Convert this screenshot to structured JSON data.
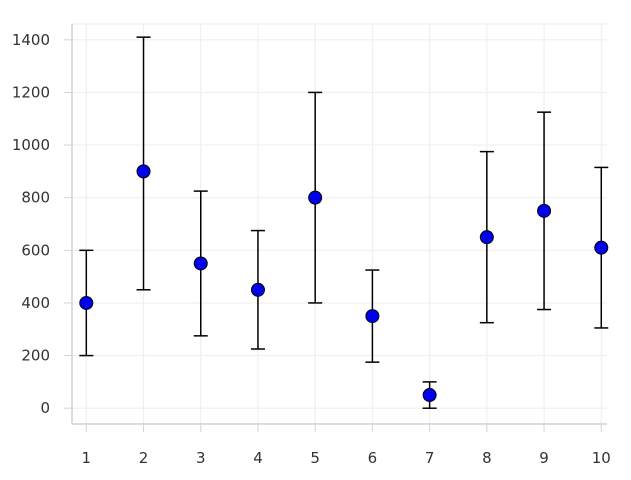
{
  "chart_data": {
    "type": "scatter",
    "x": [
      1,
      2,
      3,
      4,
      5,
      6,
      7,
      8,
      9,
      10
    ],
    "series": [
      {
        "values": [
          400,
          900,
          550,
          450,
          800,
          350,
          50,
          650,
          750,
          610
        ],
        "error_low": [
          200,
          450,
          275,
          225,
          400,
          175,
          0,
          325,
          375,
          305
        ],
        "error_high": [
          600,
          1410,
          825,
          675,
          1200,
          525,
          100,
          975,
          1125,
          915
        ],
        "color": "#0000ee"
      }
    ],
    "title": "",
    "xlabel": "",
    "ylabel": "",
    "x_ticks": [
      "1",
      "2",
      "3",
      "4",
      "5",
      "6",
      "7",
      "8",
      "9",
      "10"
    ],
    "y_ticks": [
      "0",
      "200",
      "400",
      "600",
      "800",
      "1000",
      "1200",
      "1400"
    ],
    "y_tick_values": [
      0,
      200,
      400,
      600,
      800,
      1000,
      1200,
      1400
    ],
    "xlim": [
      0.75,
      10.1
    ],
    "ylim": [
      -60,
      1460
    ],
    "grid": true,
    "grid_color": "#eef0f0",
    "axis_color": "#cfd4d4",
    "error_bar_color": "#000000",
    "legend": "none"
  }
}
